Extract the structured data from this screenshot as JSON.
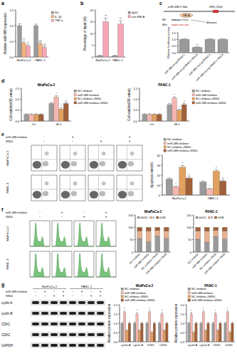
{
  "panel_labels": [
    "a",
    "b",
    "c",
    "d",
    "e",
    "f",
    "g"
  ],
  "chart_data": [
    {
      "type": "bar",
      "y_label": "Relative miR-488 expression",
      "categories": [
        "MiaPaCa-2",
        "PANC-1"
      ],
      "series": [
        {
          "name": "NC",
          "color": "#9a9a9a",
          "values": [
            1.0,
            1.0
          ],
          "errors": [
            0.06,
            0.05
          ]
        },
        {
          "name": "IL-1β",
          "color": "#f2b27e",
          "values": [
            0.45,
            0.42
          ],
          "errors": [
            0.05,
            0.04
          ]
        },
        {
          "name": "TNF-α",
          "color": "#f4a6b4",
          "values": [
            0.35,
            0.3
          ],
          "errors": [
            0.04,
            0.04
          ]
        }
      ],
      "ylim": [
        0,
        1.5
      ],
      "yticks": [
        {
          "value": 0,
          "label": "0.0"
        },
        0.5,
        {
          "value": 1,
          "label": "1.0"
        },
        1.5
      ],
      "legend": "right",
      "annotations": [
        {
          "text": "**",
          "series": 1,
          "category": 0
        },
        {
          "text": "**",
          "series": 2,
          "category": 0
        },
        {
          "text": "##",
          "series": 1,
          "category": 1
        },
        {
          "text": "##",
          "series": 2,
          "category": 1
        }
      ]
    },
    {
      "type": "bar",
      "y_label": "Percentage of input (%)",
      "categories": [
        "MiaPaCa-2",
        "PANC-1"
      ],
      "series": [
        {
          "name": "IgG1",
          "color": "#9a9a9a",
          "values": [
            0.5,
            0.5
          ],
          "errors": [
            0.2,
            0.2
          ]
        },
        {
          "name": "anti-RELA",
          "color": "#f4a6b4",
          "values": [
            15,
            14
          ],
          "errors": [
            1.5,
            1.4
          ]
        }
      ],
      "ylim": [
        0,
        20
      ],
      "yticks": [
        0,
        5,
        10,
        15,
        20
      ],
      "legend": "right",
      "annotations": [
        {
          "text": "**",
          "series": 1,
          "category": 0
        },
        {
          "text": "**",
          "series": 1,
          "category": 1
        }
      ]
    },
    {
      "type": "bar",
      "y_label": "Relative luciferase activity",
      "categories": [
        "miR-488-wt+pcDNA3.1",
        "miR-488-wt+pcDNA3.1-RELA",
        "miR-488-mut+pcDNA3.1",
        "miR-488-mut+pcDNA3.1-RELA"
      ],
      "values": [
        1.0,
        0.4,
        1.0,
        1.0
      ],
      "errors": [
        0.05,
        0.04,
        0.05,
        0.06
      ],
      "color": "#9a9a9a",
      "ylim": [
        0,
        1.5
      ],
      "yticks": [
        {
          "value": 0,
          "label": "0.0"
        },
        0.5,
        {
          "value": 1,
          "label": "1.0"
        },
        1.5
      ],
      "annotations": [
        {
          "text": "**",
          "category": 1
        }
      ]
    },
    {
      "type": "bar",
      "title": "MiaPaCa-2",
      "y_label": "Cell viability(OD value)",
      "categories": [
        "0 h",
        "48 h"
      ],
      "series": [
        {
          "name": "NC inhibitor",
          "color": "#9a9a9a",
          "values": [
            0.3,
            0.8
          ],
          "errors": [
            0.03,
            0.05
          ]
        },
        {
          "name": "miR-488 inhibitor",
          "color": "#f4b6b0",
          "values": [
            0.3,
            1.1
          ],
          "errors": [
            0.03,
            0.06
          ]
        },
        {
          "name": "NC inhibitor+SN50",
          "color": "#e0a060",
          "values": [
            0.3,
            0.55
          ],
          "errors": [
            0.03,
            0.05
          ]
        },
        {
          "name": "miR-488 inhibitor+SN50",
          "color": "#a0603a",
          "values": [
            0.3,
            0.8
          ],
          "errors": [
            0.03,
            0.05
          ]
        }
      ],
      "ylim": [
        0,
        1.5
      ],
      "yticks": [
        {
          "value": 0,
          "label": "0.0"
        },
        0.5,
        {
          "value": 1,
          "label": "1.0"
        },
        1.5
      ],
      "legend": "right",
      "annotations": [
        {
          "text": "*",
          "series": 1,
          "category": 1
        },
        {
          "text": "*",
          "series": 2,
          "category": 1
        },
        {
          "text": "#",
          "series": 3,
          "category": 1
        }
      ]
    },
    {
      "type": "bar",
      "title": "PANC-1",
      "y_label": "Cell viability(OD value)",
      "categories": [
        "0 h",
        "48 h"
      ],
      "series": [
        {
          "name": "NC inhibitor",
          "color": "#9a9a9a",
          "values": [
            0.3,
            0.75
          ],
          "errors": [
            0.03,
            0.05
          ]
        },
        {
          "name": "miR-488 inhibitor",
          "color": "#f4b6b0",
          "values": [
            0.3,
            1.05
          ],
          "errors": [
            0.03,
            0.06
          ]
        },
        {
          "name": "NC inhibitor+SN50",
          "color": "#e0a060",
          "values": [
            0.3,
            0.5
          ],
          "errors": [
            0.03,
            0.04
          ]
        },
        {
          "name": "miR-488 inhibitor+SN50",
          "color": "#a0603a",
          "values": [
            0.3,
            0.75
          ],
          "errors": [
            0.03,
            0.05
          ]
        }
      ],
      "ylim": [
        0,
        1.5
      ],
      "yticks": [
        {
          "value": 0,
          "label": "0.0"
        },
        0.5,
        {
          "value": 1,
          "label": "1.0"
        },
        1.5
      ],
      "legend": "right",
      "annotations": [
        {
          "text": "*",
          "series": 1,
          "category": 1
        },
        {
          "text": "*",
          "series": 2,
          "category": 1
        },
        {
          "text": "#",
          "series": 3,
          "category": 1
        }
      ]
    },
    {
      "type": "bar",
      "y_label": "Apoptosis rate(%)",
      "categories": [
        "MiaPaCa-2",
        "PANC-1"
      ],
      "series": [
        {
          "name": "NC inhibitor",
          "color": "#9a9a9a",
          "values": [
            16,
            13
          ],
          "errors": [
            1.2,
            1.0
          ]
        },
        {
          "name": "miR-488 inhibitor",
          "color": "#f4b6b0",
          "values": [
            8,
            6
          ],
          "errors": [
            0.8,
            0.7
          ]
        },
        {
          "name": "NC inhibitor+SN50",
          "color": "#e0a060",
          "values": [
            28,
            24
          ],
          "errors": [
            1.8,
            1.5
          ]
        },
        {
          "name": "miR-488 inhibitor+SN50",
          "color": "#a0603a",
          "values": [
            17,
            14
          ],
          "errors": [
            1.2,
            1.1
          ]
        }
      ],
      "ylim": [
        0,
        40
      ],
      "yticks": [
        0,
        10,
        20,
        30,
        40
      ],
      "legend": "top",
      "annotations": [
        {
          "text": "*",
          "series": 1,
          "category": 0
        },
        {
          "text": "*",
          "series": 2,
          "category": 0
        },
        {
          "text": "#",
          "series": 3,
          "category": 0
        },
        {
          "text": "*",
          "series": 1,
          "category": 1
        },
        {
          "text": "*",
          "series": 2,
          "category": 1
        },
        {
          "text": "#",
          "series": 3,
          "category": 1
        }
      ]
    },
    {
      "type": "bar",
      "title": "MiaPaCa-2",
      "stacked": true,
      "categories": [
        "NC inhibitor",
        "miR-488 inhibitor",
        "NC inhibitor+SN50",
        "miR-488 inhibitor+SN50"
      ],
      "series": [
        {
          "name": "G0/G1",
          "color": "#9a9a9a",
          "values": [
            55,
            42,
            65,
            55
          ]
        },
        {
          "name": "S",
          "color": "#e8b090",
          "values": [
            30,
            43,
            22,
            30
          ]
        },
        {
          "name": "G2/M",
          "color": "#a0603a",
          "values": [
            15,
            15,
            13,
            15
          ]
        }
      ],
      "ylim": [
        0,
        150
      ],
      "yticks": [
        0,
        50,
        100,
        150
      ],
      "legend": "upper-left"
    },
    {
      "type": "bar",
      "title": "PANC-1",
      "stacked": true,
      "categories": [
        "NC inhibitor",
        "miR-488 inhibitor",
        "NC inhibitor+SN50",
        "miR-488 inhibitor+SN50"
      ],
      "series": [
        {
          "name": "G0/G1",
          "color": "#9a9a9a",
          "values": [
            52,
            40,
            63,
            53
          ]
        },
        {
          "name": "S",
          "color": "#e8b090",
          "values": [
            33,
            45,
            25,
            32
          ]
        },
        {
          "name": "G2/M",
          "color": "#a0603a",
          "values": [
            15,
            15,
            12,
            15
          ]
        }
      ],
      "ylim": [
        0,
        150
      ],
      "yticks": [
        0,
        50,
        100,
        150
      ],
      "legend": "upper-left"
    },
    {
      "type": "bar",
      "title": "MiaPaCa-2",
      "y_label": "Relative protein expression",
      "categories": [
        "cyclin A",
        "cyclin B",
        "CDK1",
        "CDK2"
      ],
      "series": [
        {
          "name": "NC inhibitor",
          "color": "#9a9a9a",
          "values": [
            1.0,
            1.0,
            1.0,
            1.0
          ],
          "errors": [
            0.06,
            0.06,
            0.06,
            0.06
          ]
        },
        {
          "name": "miR-488 inhibitor",
          "color": "#f4b6b0",
          "values": [
            1.6,
            1.5,
            1.6,
            1.5
          ],
          "errors": [
            0.08,
            0.08,
            0.08,
            0.08
          ]
        },
        {
          "name": "NC inhibitor+SN50",
          "color": "#e0a060",
          "values": [
            0.6,
            0.6,
            0.5,
            0.6
          ],
          "errors": [
            0.05,
            0.05,
            0.05,
            0.05
          ]
        },
        {
          "name": "miR-488 inhibitor+SN50",
          "color": "#a0603a",
          "values": [
            1.0,
            1.0,
            1.0,
            1.0
          ],
          "errors": [
            0.06,
            0.06,
            0.06,
            0.06
          ]
        }
      ],
      "ylim": [
        0,
        2
      ],
      "yticks": [
        {
          "value": 0,
          "label": "0.0"
        },
        0.5,
        {
          "value": 1,
          "label": "1.0"
        },
        1.5,
        {
          "value": 2,
          "label": "2.0"
        }
      ],
      "legend": "top",
      "annotations": [
        {
          "text": "*",
          "series": 1,
          "category": 0
        },
        {
          "text": "*",
          "series": 1,
          "category": 1
        },
        {
          "text": "*",
          "series": 1,
          "category": 2
        },
        {
          "text": "*",
          "series": 1,
          "category": 3
        }
      ]
    },
    {
      "type": "bar",
      "title": "PANC-1",
      "y_label": "Relative protein expression",
      "categories": [
        "cyclin A",
        "cyclin B",
        "CDK1",
        "CDK2"
      ],
      "series": [
        {
          "name": "NC inhibitor",
          "color": "#9a9a9a",
          "values": [
            1.0,
            1.0,
            1.0,
            1.0
          ],
          "errors": [
            0.06,
            0.06,
            0.06,
            0.06
          ]
        },
        {
          "name": "miR-488 inhibitor",
          "color": "#f4b6b0",
          "values": [
            1.5,
            1.6,
            1.5,
            1.6
          ],
          "errors": [
            0.08,
            0.08,
            0.08,
            0.08
          ]
        },
        {
          "name": "NC inhibitor+SN50",
          "color": "#e0a060",
          "values": [
            0.5,
            0.6,
            0.6,
            0.5
          ],
          "errors": [
            0.05,
            0.05,
            0.05,
            0.05
          ]
        },
        {
          "name": "miR-488 inhibitor+SN50",
          "color": "#a0603a",
          "values": [
            1.0,
            1.0,
            1.0,
            1.0
          ],
          "errors": [
            0.06,
            0.06,
            0.06,
            0.06
          ]
        }
      ],
      "ylim": [
        0,
        2
      ],
      "yticks": [
        {
          "value": 0,
          "label": "0.0"
        },
        0.5,
        {
          "value": 1,
          "label": "1.0"
        },
        1.5,
        {
          "value": 2,
          "label": "2.0"
        }
      ],
      "legend": "top",
      "annotations": [
        {
          "text": "*",
          "series": 1,
          "category": 0
        },
        {
          "text": "*",
          "series": 1,
          "category": 1
        },
        {
          "text": "*",
          "series": 1,
          "category": 2
        },
        {
          "text": "*",
          "series": 1,
          "category": 3
        }
      ]
    }
  ],
  "promoter_diagram": {
    "region": "miR-488 2.5kb",
    "site": "1895-1904",
    "factor": "RELA",
    "wt": {
      "label": "Wt",
      "sequence": "GGGAATTTCC"
    },
    "mut": {
      "label": "Mut",
      "sequence": "GAGCCGCCAG"
    },
    "change": "Mutation"
  },
  "flow_plots": {
    "factors": [
      "miR-488 inhibitor",
      "SN50"
    ],
    "signs": [
      [
        "-",
        "+",
        "-",
        "+"
      ],
      [
        "-",
        "-",
        "+",
        "+"
      ]
    ],
    "rows": [
      "MiaPaCa-2",
      "PANC-1"
    ]
  },
  "cycle_plots": {
    "factors": [
      "miR-488 inhibitor",
      "SN50"
    ],
    "signs": [
      [
        "-",
        "+",
        "-",
        "+"
      ],
      [
        "-",
        "-",
        "+",
        "+"
      ]
    ],
    "rows": [
      "MiaPaCa-2",
      "PANC-1"
    ]
  },
  "blot": {
    "cell_lines": [
      "MiaPaCa-2",
      "PANC-1"
    ],
    "factors": [
      "miR-488 inhibitor",
      "SN50"
    ],
    "signs": [
      [
        "-",
        "+",
        "-",
        "+",
        "-",
        "+",
        "-",
        "+"
      ],
      [
        "-",
        "-",
        "+",
        "+",
        "-",
        "-",
        "+",
        "+"
      ]
    ],
    "proteins": [
      "cyclin A",
      "cyclin B",
      "CDK1",
      "CDK2",
      "GAPDH"
    ]
  }
}
